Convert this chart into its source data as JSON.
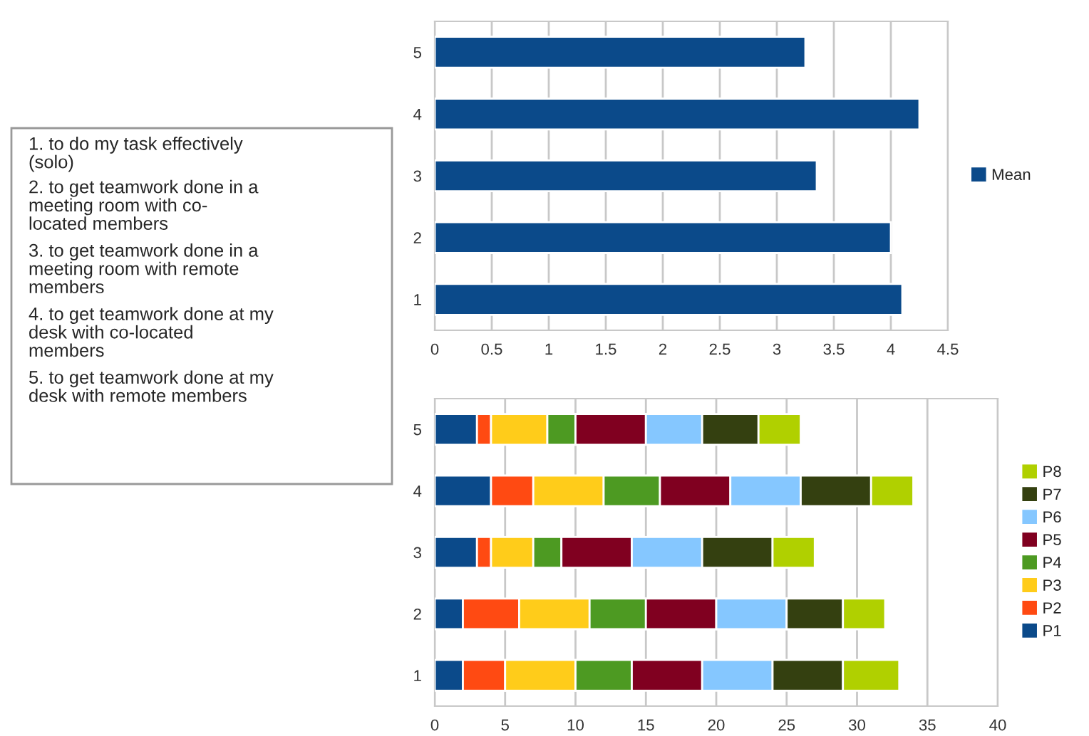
{
  "chart_data": [
    {
      "type": "bar",
      "orientation": "horizontal",
      "categories": [
        "5",
        "4",
        "3",
        "2",
        "1"
      ],
      "series": [
        {
          "name": "Mean",
          "color": "#0b4a8a",
          "values": [
            3.25,
            4.25,
            3.35,
            4.0,
            4.1
          ]
        }
      ],
      "xlim": [
        0,
        4.5
      ],
      "xticks": [
        0,
        0.5,
        1,
        1.5,
        2,
        2.5,
        3,
        3.5,
        4,
        4.5
      ],
      "grid": "x",
      "legend": "right"
    },
    {
      "type": "other",
      "annotations": [
        "1. to do my task effectively\n(solo)",
        "2. to get teamwork done in a\nmeeting room with co-\nlocated members",
        "3. to get teamwork done in a\nmeeting room with remote\nmembers",
        "4. to get teamwork done at my\ndesk with co-located\nmembers",
        "5. to get teamwork done at my\ndesk with remote members"
      ]
    },
    {
      "type": "bar",
      "orientation": "horizontal",
      "stacked": true,
      "categories": [
        "5",
        "4",
        "3",
        "2",
        "1"
      ],
      "series": [
        {
          "name": "P1",
          "color": "#0b4a8a",
          "values": [
            3,
            4,
            3,
            2,
            2
          ]
        },
        {
          "name": "P2",
          "color": "#ff4a12",
          "values": [
            1,
            3,
            1,
            4,
            3
          ]
        },
        {
          "name": "P3",
          "color": "#ffcc1a",
          "values": [
            4,
            5,
            3,
            5,
            5
          ]
        },
        {
          "name": "P4",
          "color": "#4d9a22",
          "values": [
            2,
            4,
            2,
            4,
            4
          ]
        },
        {
          "name": "P5",
          "color": "#800020",
          "values": [
            5,
            5,
            5,
            5,
            5
          ]
        },
        {
          "name": "P6",
          "color": "#85c7ff",
          "values": [
            4,
            5,
            5,
            5,
            5
          ]
        },
        {
          "name": "P7",
          "color": "#344010",
          "values": [
            4,
            5,
            5,
            4,
            5
          ]
        },
        {
          "name": "P8",
          "color": "#b0d000",
          "values": [
            3,
            3,
            3,
            3,
            4
          ]
        }
      ],
      "xlim": [
        0,
        40
      ],
      "xticks": [
        0,
        5,
        10,
        15,
        20,
        25,
        30,
        35,
        40
      ],
      "grid": "x",
      "legend": "right"
    }
  ]
}
